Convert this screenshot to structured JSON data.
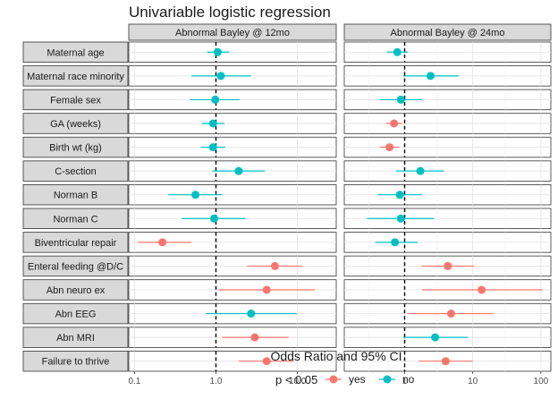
{
  "chart_data": {
    "type": "scatter",
    "title": "Univariable logistic regression",
    "xlabel": "Odds Ratio and 95% CI",
    "x_scale": "log10",
    "reference_line": 1,
    "legend": {
      "title": "p < 0.05",
      "position": "bottom",
      "yes_label": "yes",
      "no_label": "no"
    },
    "colors": {
      "yes": "#f8766d",
      "no": "#00bfc4"
    },
    "rows": [
      "Maternal age",
      "Maternal race minority",
      "Female sex",
      "GA (weeks)",
      "Birth wt (kg)",
      "C-section",
      "Norman B",
      "Norman C",
      "Biventricular repair",
      "Enteral feeding @D/C",
      "Abn neuro ex",
      "Abn EEG",
      "Abn MRI",
      "Failure to thrive"
    ],
    "panels": [
      {
        "title": "Abnormal Bayley @ 12mo",
        "xlim": [
          0.085,
          30
        ],
        "ticks": [
          0.1,
          1.0,
          10.0
        ],
        "tick_labels": [
          "0.1",
          "1.0",
          "10.0"
        ],
        "points": [
          {
            "or": 1.05,
            "lo": 0.78,
            "hi": 1.45,
            "sig": "no"
          },
          {
            "or": 1.15,
            "lo": 0.5,
            "hi": 2.7,
            "sig": "no"
          },
          {
            "or": 0.98,
            "lo": 0.48,
            "hi": 1.95,
            "sig": "no"
          },
          {
            "or": 0.92,
            "lo": 0.67,
            "hi": 1.27,
            "sig": "no"
          },
          {
            "or": 0.92,
            "lo": 0.65,
            "hi": 1.3,
            "sig": "no"
          },
          {
            "or": 1.9,
            "lo": 0.9,
            "hi": 4.0,
            "sig": "no"
          },
          {
            "or": 0.56,
            "lo": 0.26,
            "hi": 1.2,
            "sig": "no"
          },
          {
            "or": 0.95,
            "lo": 0.38,
            "hi": 2.3,
            "sig": "no"
          },
          {
            "or": 0.22,
            "lo": 0.11,
            "hi": 0.5,
            "sig": "yes"
          },
          {
            "or": 5.3,
            "lo": 2.4,
            "hi": 11.5,
            "sig": "yes"
          },
          {
            "or": 4.2,
            "lo": 1.08,
            "hi": 16.5,
            "sig": "yes"
          },
          {
            "or": 2.7,
            "lo": 0.75,
            "hi": 9.8,
            "sig": "no"
          },
          {
            "or": 3.0,
            "lo": 1.2,
            "hi": 7.8,
            "sig": "yes"
          },
          {
            "or": 4.2,
            "lo": 1.9,
            "hi": 9.0,
            "sig": "yes"
          }
        ]
      },
      {
        "title": "Abnormal Bayley @ 24mo",
        "xlim": [
          0.13,
          140
        ],
        "ticks": [
          0.3,
          1,
          3,
          10,
          30,
          100
        ],
        "tick_labels": [
          "",
          "1",
          "",
          "10",
          "",
          "100"
        ],
        "points": [
          {
            "or": 0.78,
            "lo": 0.55,
            "hi": 1.12,
            "sig": "no"
          },
          {
            "or": 2.4,
            "lo": 0.95,
            "hi": 6.2,
            "sig": "no"
          },
          {
            "or": 0.88,
            "lo": 0.43,
            "hi": 1.8,
            "sig": "no"
          },
          {
            "or": 0.7,
            "lo": 0.53,
            "hi": 0.92,
            "sig": "yes"
          },
          {
            "or": 0.6,
            "lo": 0.43,
            "hi": 0.84,
            "sig": "yes"
          },
          {
            "or": 1.7,
            "lo": 0.75,
            "hi": 3.8,
            "sig": "no"
          },
          {
            "or": 0.85,
            "lo": 0.4,
            "hi": 1.8,
            "sig": "no"
          },
          {
            "or": 0.88,
            "lo": 0.28,
            "hi": 2.7,
            "sig": "no"
          },
          {
            "or": 0.72,
            "lo": 0.37,
            "hi": 1.55,
            "sig": "no"
          },
          {
            "or": 4.3,
            "lo": 1.75,
            "hi": 10.5,
            "sig": "yes"
          },
          {
            "or": 13.5,
            "lo": 1.8,
            "hi": 105,
            "sig": "yes"
          },
          {
            "or": 4.8,
            "lo": 1.1,
            "hi": 20,
            "sig": "yes"
          },
          {
            "or": 2.8,
            "lo": 0.95,
            "hi": 8.5,
            "sig": "no"
          },
          {
            "or": 4.0,
            "lo": 1.6,
            "hi": 10.0,
            "sig": "yes"
          }
        ]
      }
    ]
  }
}
